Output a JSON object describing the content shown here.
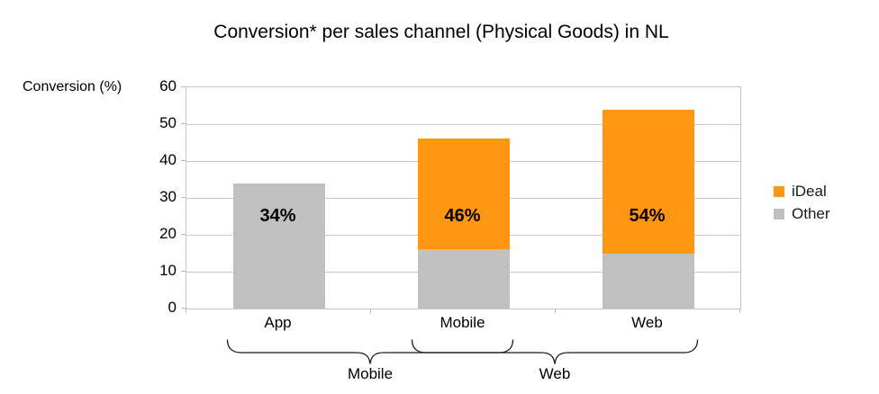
{
  "title": "Conversion* per sales channel (Physical Goods) in NL",
  "y_axis_title": "Conversion (%)",
  "y_tick_labels": [
    "60",
    "50",
    "40",
    "30",
    "20",
    "10",
    "0"
  ],
  "chart_data": {
    "type": "bar",
    "stacked": true,
    "title": "Conversion* per sales channel (Physical Goods) in NL",
    "ylabel": "Conversion (%)",
    "xlabel": "",
    "ylim": [
      0,
      60
    ],
    "ytick_step": 10,
    "grid": true,
    "legend_position": "right",
    "categories": [
      "App",
      "Mobile",
      "Web"
    ],
    "series": [
      {
        "name": "Other",
        "color": "#C0C0C0",
        "values": [
          34,
          16,
          15
        ]
      },
      {
        "name": "iDeal",
        "color": "#FF9612",
        "values": [
          0,
          30,
          39
        ]
      }
    ],
    "totals": [
      34,
      46,
      54
    ],
    "bar_total_labels": [
      "34%",
      "46%",
      "54%"
    ],
    "group_braces": [
      {
        "label": "Mobile",
        "from_category": "App",
        "to_category": "Mobile"
      },
      {
        "label": "Web",
        "from_category": "Mobile",
        "to_category": "Web"
      }
    ]
  },
  "legend": {
    "items": [
      {
        "label": "iDeal",
        "color": "#FF9612"
      },
      {
        "label": "Other",
        "color": "#C0C0C0"
      }
    ]
  }
}
